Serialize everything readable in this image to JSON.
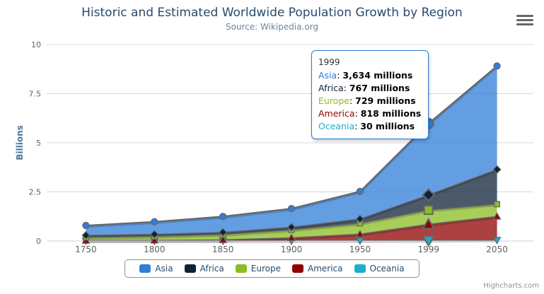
{
  "title": "Historic and Estimated Worldwide Population Growth by Region",
  "subtitle": "Source: Wikipedia.org",
  "credits": "Highcharts.com",
  "menu_icon": "hamburger-icon",
  "chart_data": {
    "type": "area",
    "stacking": "normal",
    "title": "Historic and Estimated Worldwide Population Growth by Region",
    "subtitle": "Source: Wikipedia.org",
    "xlabel": "",
    "ylabel": "Billions",
    "unit": "millions",
    "ylim": [
      0,
      10
    ],
    "yticks": [
      0,
      2.5,
      5,
      7.5,
      10
    ],
    "grid": true,
    "legend_position": "bottom",
    "categories": [
      "1750",
      "1800",
      "1850",
      "1900",
      "1950",
      "1999",
      "2050"
    ],
    "series": [
      {
        "name": "Asia",
        "color": "#2f7ed8",
        "marker": "circle",
        "values": [
          502,
          635,
          809,
          947,
          1402,
          3634,
          5268
        ]
      },
      {
        "name": "Africa",
        "color": "#0d233a",
        "marker": "diamond",
        "values": [
          106,
          107,
          111,
          133,
          221,
          767,
          1766
        ]
      },
      {
        "name": "Europe",
        "color": "#8bbc21",
        "marker": "square",
        "values": [
          163,
          203,
          276,
          408,
          547,
          729,
          628
        ]
      },
      {
        "name": "America",
        "color": "#910000",
        "marker": "triangle",
        "values": [
          18,
          31,
          54,
          156,
          339,
          818,
          1201
        ]
      },
      {
        "name": "Oceania",
        "color": "#1aadce",
        "marker": "triangle-down",
        "values": [
          2,
          2,
          2,
          6,
          13,
          30,
          46
        ]
      }
    ]
  },
  "tooltip": {
    "header": "1999",
    "category_index": 5,
    "suffix": "millions",
    "rows": [
      {
        "name": "Asia",
        "value": "3,634"
      },
      {
        "name": "Africa",
        "value": "767"
      },
      {
        "name": "Europe",
        "value": "729"
      },
      {
        "name": "America",
        "value": "818"
      },
      {
        "name": "Oceania",
        "value": "30"
      }
    ]
  },
  "colors": {
    "grid_line": "#D8D8D8",
    "axis_line": "#C0D0E0",
    "axis_label": "#606060",
    "series_line": "#666666",
    "title_text": "#274b6d",
    "subtitle_text": "#6D869F",
    "y_title_text": "#4d759e",
    "legend_text": "#274b6d",
    "tooltip_border": "#2f7ed8"
  }
}
